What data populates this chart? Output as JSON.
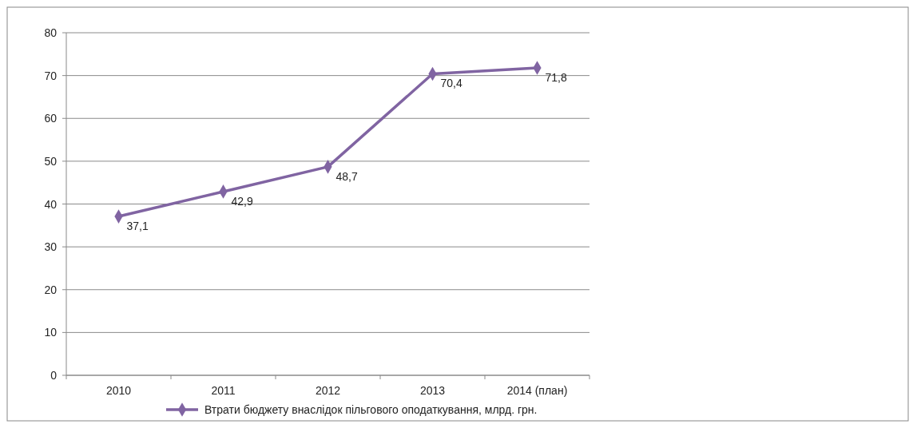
{
  "chart_data": {
    "type": "line",
    "categories": [
      "2010",
      "2011",
      "2012",
      "2013",
      "2014 (план)"
    ],
    "series": [
      {
        "name": "Втрати бюджету внаслідок пільгового оподаткування, млрд. грн.",
        "color": "#8064a2",
        "values": [
          37.1,
          42.9,
          48.7,
          70.4,
          71.8
        ],
        "value_labels": [
          "37,1",
          "42,9",
          "48,7",
          "70,4",
          "71,8"
        ]
      }
    ],
    "ylim": [
      0,
      80
    ],
    "yticks": [
      0,
      10,
      20,
      30,
      40,
      50,
      60,
      70,
      80
    ],
    "grid": "y",
    "legend": "bottom",
    "marker": "diamond",
    "line_style": "solid"
  }
}
